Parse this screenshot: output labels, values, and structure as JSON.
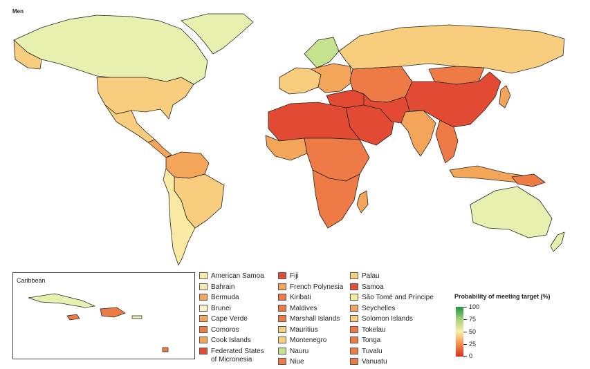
{
  "title": "Men",
  "inset_label": "Caribbean",
  "colors": {
    "c0": "#e34a33",
    "c1": "#ee7a45",
    "c2": "#f5a55a",
    "c3": "#f8cd7e",
    "c4": "#f9e9a2",
    "c5": "#e8f0b0",
    "c6": "#c5e38f",
    "water": "#ffffff",
    "border": "#222222"
  },
  "legend": {
    "col1": [
      {
        "label": "American Samoa",
        "color": "#f9e9a2"
      },
      {
        "label": "Bahrain",
        "color": "#f2eab0"
      },
      {
        "label": "Bermuda",
        "color": "#f5a55a"
      },
      {
        "label": "Brunei",
        "color": "#faf3cc"
      },
      {
        "label": "Cape Verde",
        "color": "#f5a55a"
      },
      {
        "label": "Comoros",
        "color": "#ee7a45"
      },
      {
        "label": "Cook Islands",
        "color": "#f5a55a"
      },
      {
        "label": "Federated States of Micronesia",
        "color": "#e34a33"
      }
    ],
    "col2": [
      {
        "label": "Fiji",
        "color": "#e34a33"
      },
      {
        "label": "French Polynesia",
        "color": "#f5a55a"
      },
      {
        "label": "Kiribati",
        "color": "#ee7a45"
      },
      {
        "label": "Maldives",
        "color": "#ee7a45"
      },
      {
        "label": "Marshall Islands",
        "color": "#ee7a45"
      },
      {
        "label": "Mauritius",
        "color": "#f8cd7e"
      },
      {
        "label": "Montenegro",
        "color": "#f8cd7e"
      },
      {
        "label": "Nauru",
        "color": "#c5e38f"
      },
      {
        "label": "Niue",
        "color": "#ee7a45"
      }
    ],
    "col3": [
      {
        "label": "Palau",
        "color": "#f8cd7e"
      },
      {
        "label": "Samoa",
        "color": "#e34a33"
      },
      {
        "label": "São Tomé and Príncipe",
        "color": "#f9e9a2"
      },
      {
        "label": "Seychelles",
        "color": "#f5a55a"
      },
      {
        "label": "Solomon Islands",
        "color": "#f8cd7e"
      },
      {
        "label": "Tokelau",
        "color": "#ee7a45"
      },
      {
        "label": "Tonga",
        "color": "#ee7a45"
      },
      {
        "label": "Tuvalu",
        "color": "#ee7a45"
      },
      {
        "label": "Vanuatu",
        "color": "#ee7a45"
      }
    ]
  },
  "colorbar": {
    "title": "Probability of meeting target (%)",
    "ticks": [
      "100",
      "75",
      "50",
      "25",
      "0"
    ]
  }
}
